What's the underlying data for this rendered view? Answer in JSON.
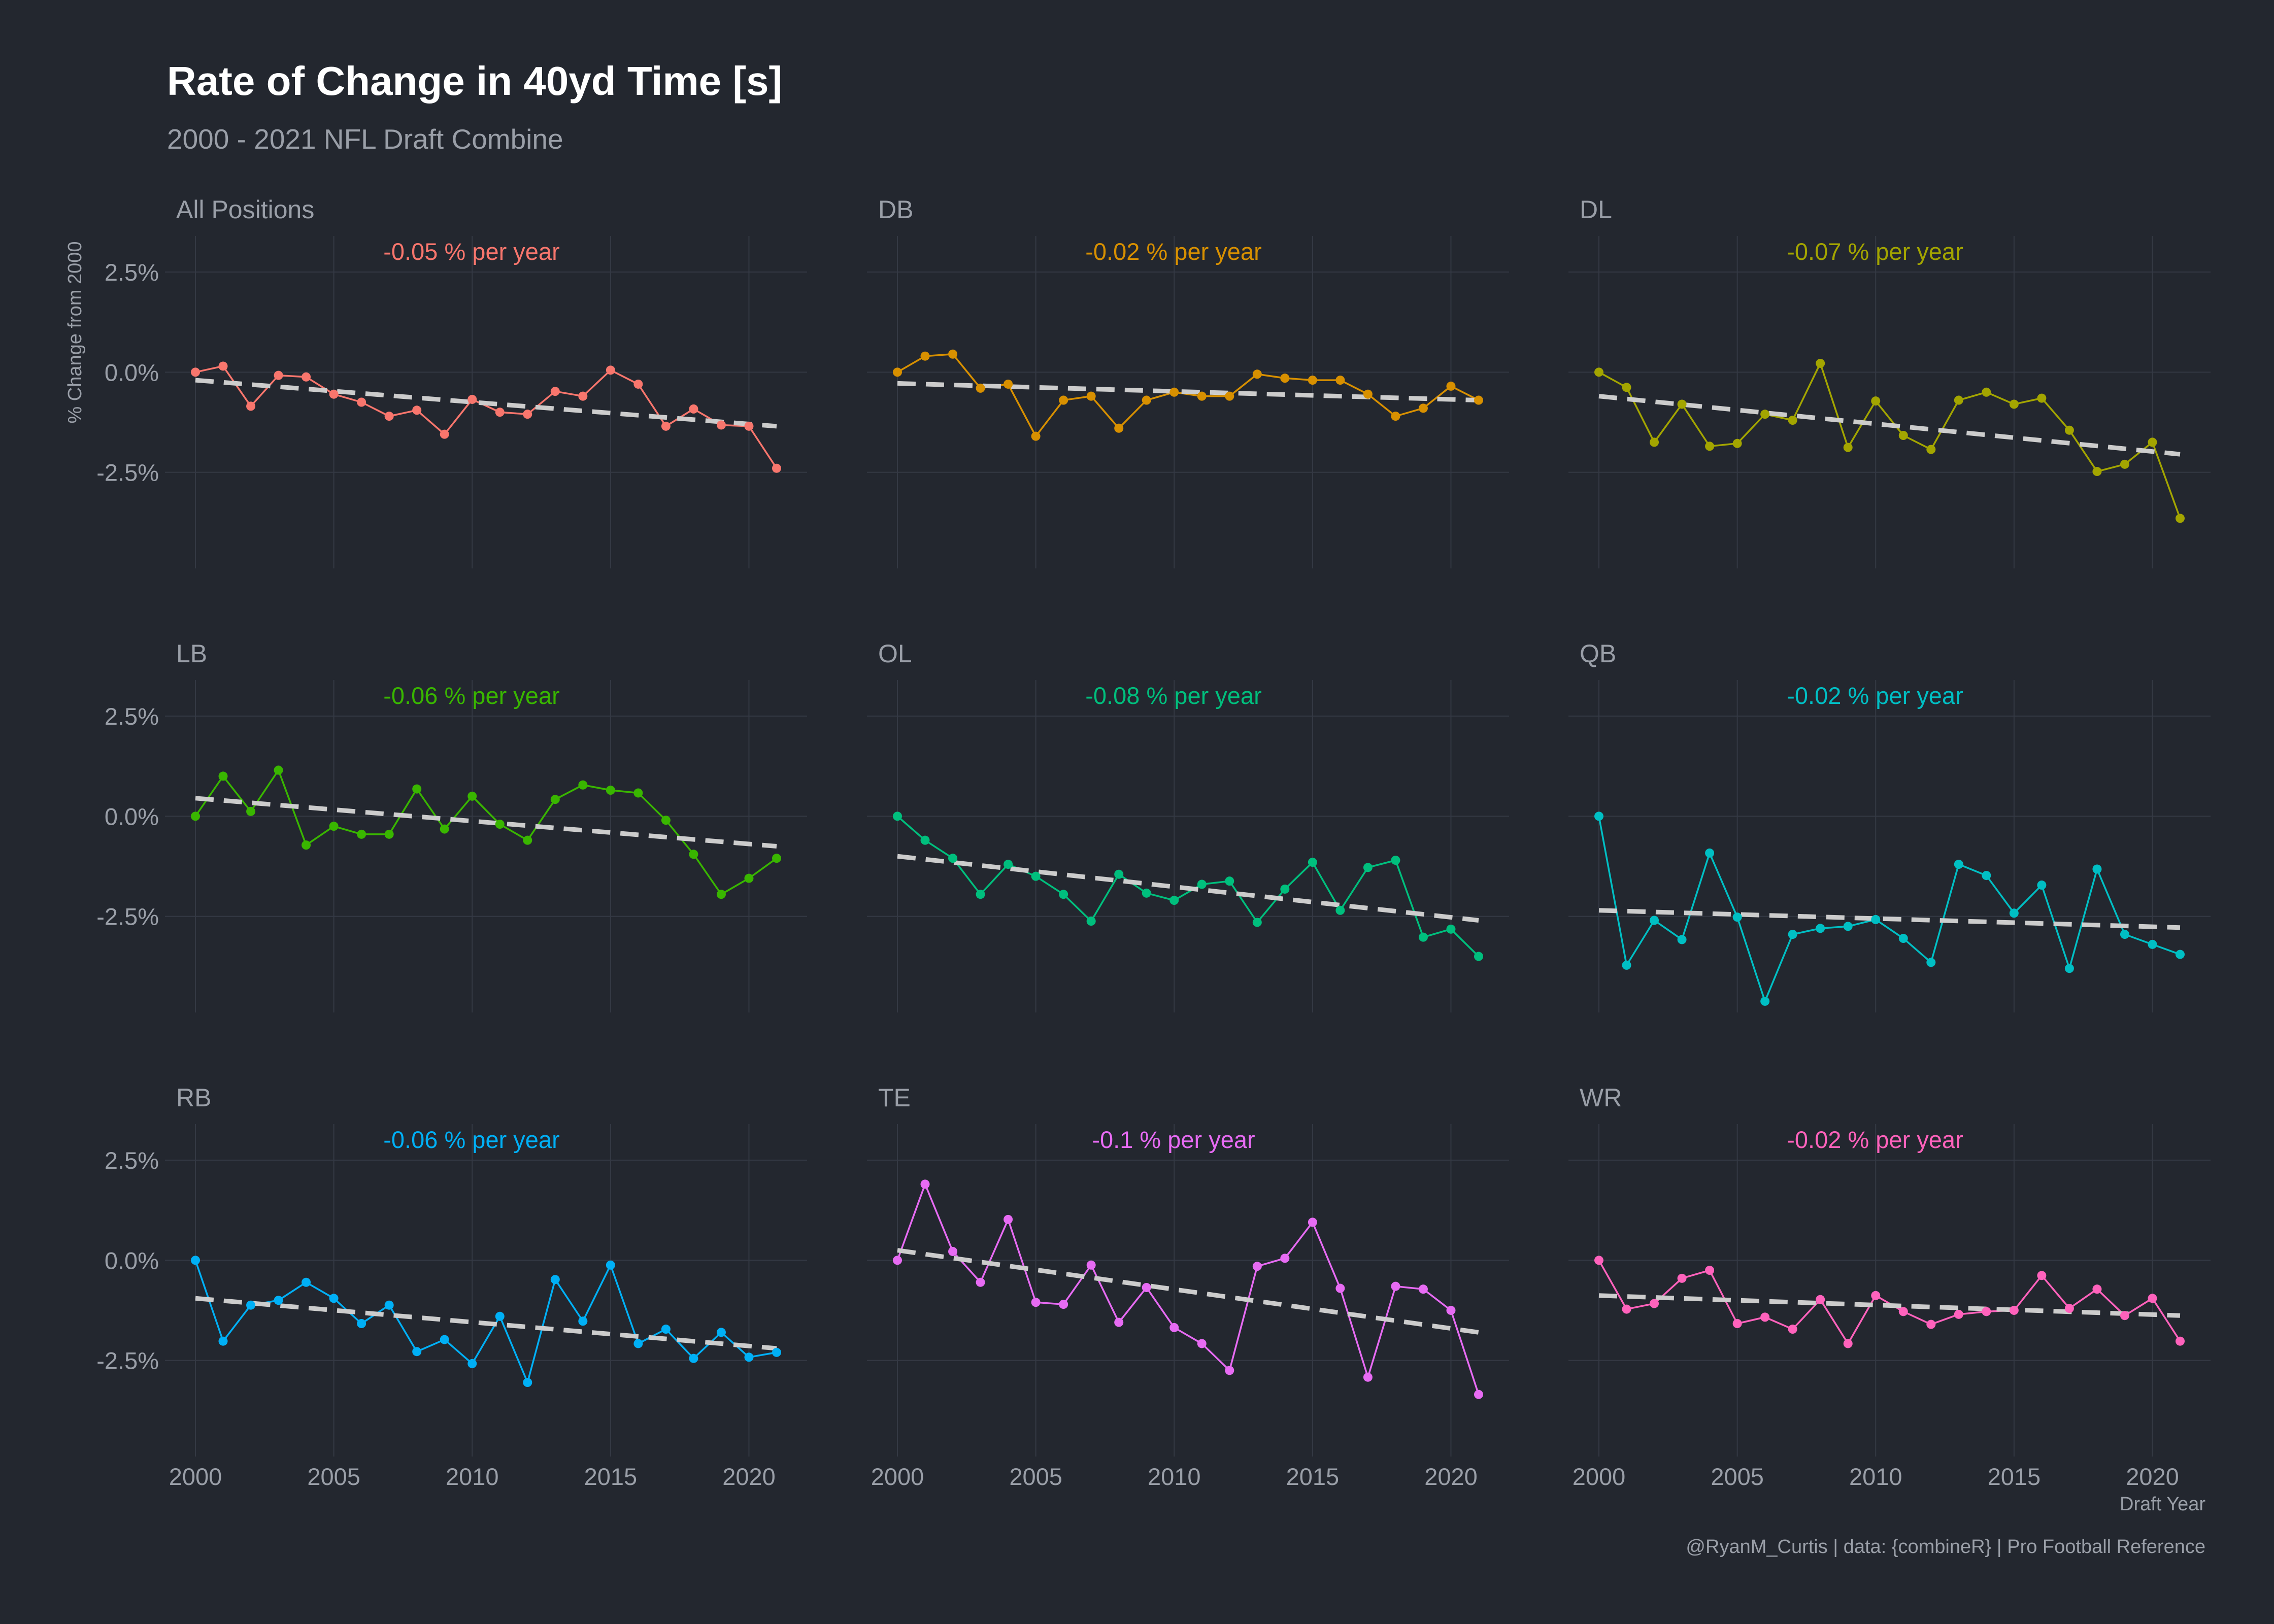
{
  "header": {
    "title": "Rate of Change in 40yd Time [s]",
    "subtitle": "2000 - 2021 NFL Draft Combine"
  },
  "axes": {
    "ylabel": "% Change from 2000",
    "xlabel": "Draft Year",
    "x_ticks": [
      2000,
      2005,
      2010,
      2015,
      2020
    ],
    "x_tick_labels": [
      "2000",
      "2005",
      "2010",
      "2015",
      "2020"
    ],
    "y_ticks": [
      2.5,
      0,
      -2.5
    ],
    "y_tick_labels": [
      "2.5%",
      "0.0%",
      "-2.5%"
    ]
  },
  "caption": "@RyanM_Curtis | data: {combineR} | Pro Football Reference",
  "colors": {
    "background": "#23272f",
    "grid": "#343944",
    "text_muted": "#9a9fa8",
    "trend": "#cccccc",
    "title": "#ffffff"
  },
  "chart_data": {
    "type": "line",
    "facets": 9,
    "layout": "3x3",
    "xlim": [
      2000,
      2021
    ],
    "ylim": [
      -4.9,
      3.4
    ],
    "years": [
      2000,
      2001,
      2002,
      2003,
      2004,
      2005,
      2006,
      2007,
      2008,
      2009,
      2010,
      2011,
      2012,
      2013,
      2014,
      2015,
      2016,
      2017,
      2018,
      2019,
      2020,
      2021
    ],
    "panels": [
      {
        "name": "All Positions",
        "color": "#f8766d",
        "annotation": "-0.05 % per year",
        "values": [
          0.0,
          0.15,
          -0.85,
          -0.08,
          -0.12,
          -0.55,
          -0.75,
          -1.1,
          -0.95,
          -1.55,
          -0.68,
          -1.0,
          -1.05,
          -0.48,
          -0.6,
          0.05,
          -0.3,
          -1.35,
          -0.92,
          -1.32,
          -1.35,
          -2.4
        ],
        "trend": [
          -0.2,
          -1.35
        ]
      },
      {
        "name": "DB",
        "color": "#d89000",
        "annotation": "-0.02 % per year",
        "values": [
          0.0,
          0.4,
          0.45,
          -0.4,
          -0.3,
          -1.6,
          -0.7,
          -0.6,
          -1.4,
          -0.7,
          -0.5,
          -0.6,
          -0.6,
          -0.05,
          -0.15,
          -0.2,
          -0.2,
          -0.55,
          -1.1,
          -0.9,
          -0.35,
          -0.7
        ],
        "trend": [
          -0.28,
          -0.7
        ]
      },
      {
        "name": "DL",
        "color": "#a3a500",
        "annotation": "-0.07 % per year",
        "values": [
          0.0,
          -0.38,
          -1.75,
          -0.8,
          -1.85,
          -1.78,
          -1.05,
          -1.2,
          0.22,
          -1.88,
          -0.72,
          -1.58,
          -1.93,
          -0.7,
          -0.5,
          -0.8,
          -0.65,
          -1.45,
          -2.48,
          -2.3,
          -1.75,
          -3.65
        ],
        "trend": [
          -0.6,
          -2.05
        ]
      },
      {
        "name": "LB",
        "color": "#39b600",
        "annotation": "-0.06 % per year",
        "values": [
          0.0,
          1.0,
          0.12,
          1.15,
          -0.72,
          -0.25,
          -0.45,
          -0.45,
          0.68,
          -0.32,
          0.5,
          -0.2,
          -0.6,
          0.42,
          0.78,
          0.65,
          0.58,
          -0.1,
          -0.95,
          -1.95,
          -1.55,
          -1.05
        ],
        "trend": [
          0.45,
          -0.75
        ]
      },
      {
        "name": "OL",
        "color": "#00bf7d",
        "annotation": "-0.08 % per year",
        "values": [
          0.0,
          -0.6,
          -1.05,
          -1.95,
          -1.2,
          -1.5,
          -1.95,
          -2.62,
          -1.45,
          -1.92,
          -2.1,
          -1.7,
          -1.62,
          -2.65,
          -1.82,
          -1.15,
          -2.35,
          -1.28,
          -1.1,
          -3.02,
          -2.82,
          -3.5
        ],
        "trend": [
          -1.0,
          -2.6
        ]
      },
      {
        "name": "QB",
        "color": "#00bfc4",
        "annotation": "-0.02 % per year",
        "values": [
          0.0,
          -3.72,
          -2.6,
          -3.08,
          -0.92,
          -2.52,
          -4.62,
          -2.95,
          -2.8,
          -2.75,
          -2.58,
          -3.05,
          -3.65,
          -1.2,
          -1.48,
          -2.42,
          -1.72,
          -3.8,
          -1.32,
          -2.95,
          -3.2,
          -3.45
        ],
        "trend": [
          -2.35,
          -2.78
        ]
      },
      {
        "name": "RB",
        "color": "#00b0f6",
        "annotation": "-0.06 % per year",
        "values": [
          0.0,
          -2.02,
          -1.12,
          -1.0,
          -0.55,
          -0.95,
          -1.58,
          -1.12,
          -2.28,
          -1.98,
          -2.58,
          -1.4,
          -3.05,
          -0.48,
          -1.52,
          -0.12,
          -2.08,
          -1.72,
          -2.45,
          -1.8,
          -2.42,
          -2.3
        ],
        "trend": [
          -0.95,
          -2.2
        ]
      },
      {
        "name": "TE",
        "color": "#e76bf3",
        "annotation": "-0.1 % per year",
        "values": [
          0.0,
          1.9,
          0.22,
          -0.55,
          1.02,
          -1.05,
          -1.1,
          -0.12,
          -1.55,
          -0.68,
          -1.68,
          -2.08,
          -2.75,
          -0.15,
          0.05,
          0.95,
          -0.7,
          -2.92,
          -0.65,
          -0.72,
          -1.25,
          -3.35
        ],
        "trend": [
          0.25,
          -1.8
        ]
      },
      {
        "name": "WR",
        "color": "#ff62bc",
        "annotation": "-0.02 % per year",
        "values": [
          0.0,
          -1.22,
          -1.08,
          -0.45,
          -0.25,
          -1.58,
          -1.42,
          -1.72,
          -0.98,
          -2.08,
          -0.88,
          -1.28,
          -1.6,
          -1.35,
          -1.28,
          -1.25,
          -0.38,
          -1.2,
          -0.72,
          -1.38,
          -0.95,
          -2.02
        ],
        "trend": [
          -0.88,
          -1.38
        ]
      }
    ]
  }
}
